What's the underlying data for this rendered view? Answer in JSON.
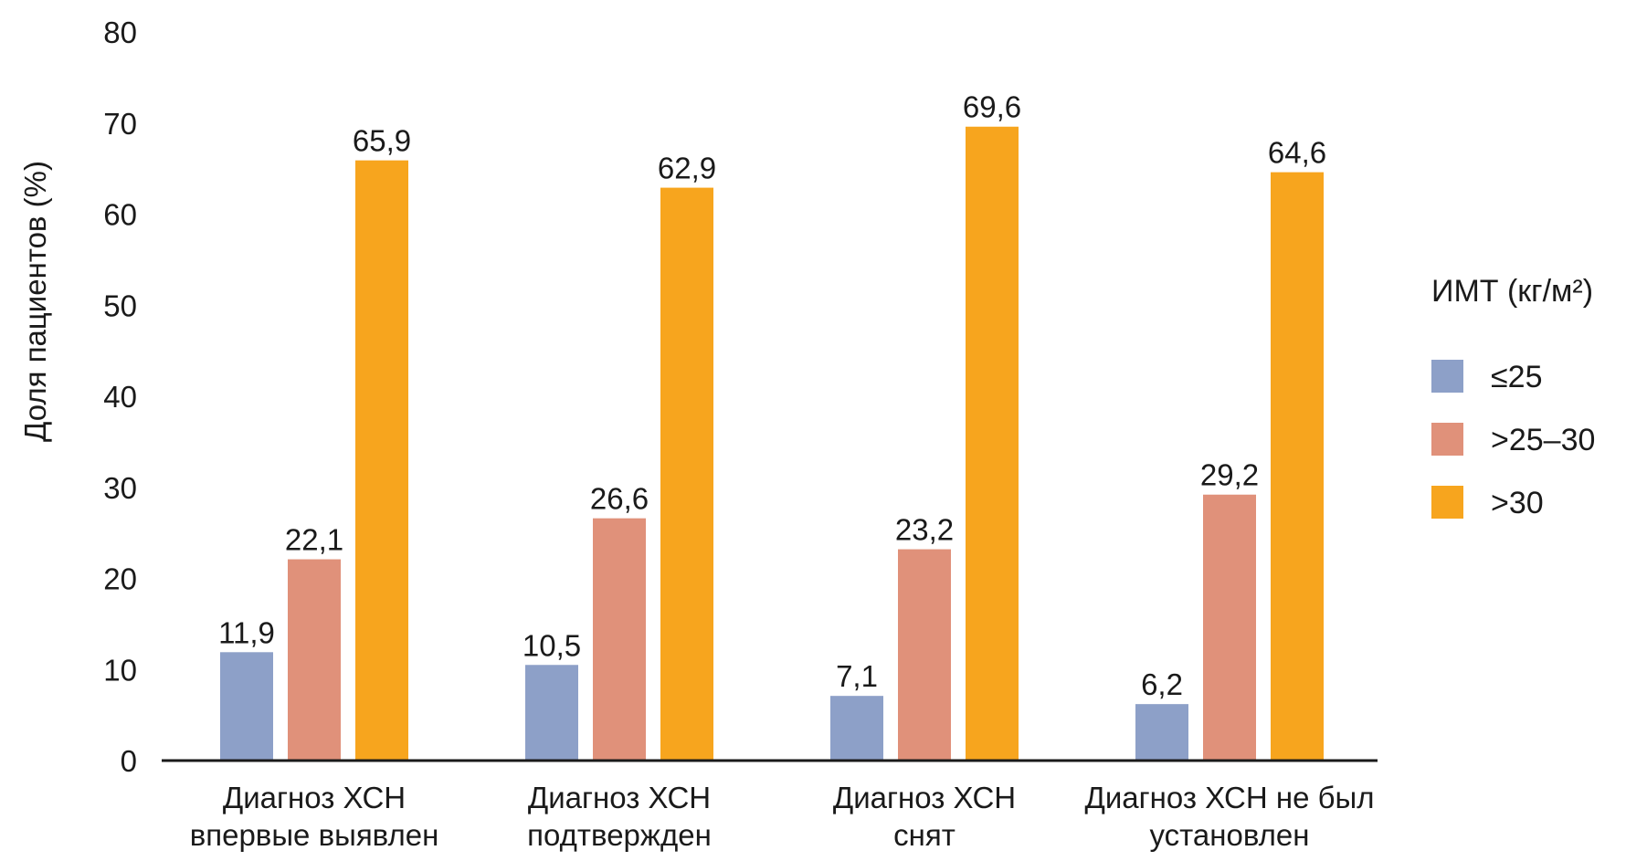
{
  "chart_data": {
    "type": "bar",
    "title": "",
    "xlabel": "",
    "ylabel": "Доля пациентов (%)",
    "ylim": [
      0,
      80
    ],
    "yticks": [
      0,
      10,
      20,
      30,
      40,
      50,
      60,
      70,
      80
    ],
    "grid": false,
    "categories": [
      [
        "Диагноз ХСН",
        "впервые выявлен"
      ],
      [
        "Диагноз ХСН",
        "подтвержден"
      ],
      [
        "Диагноз ХСН",
        "снят"
      ],
      [
        "Диагноз ХСН не был",
        "установлен"
      ]
    ],
    "legend": {
      "title": "ИМТ (кг/м²)",
      "placement": "right"
    },
    "series": [
      {
        "name": "≤25",
        "color": "#8da0c8",
        "values": [
          11.9,
          10.5,
          7.1,
          6.2
        ],
        "labels": [
          "11,9",
          "10,5",
          "7,1",
          "6,2"
        ]
      },
      {
        "name": ">25–30",
        "color": "#e0917a",
        "values": [
          22.1,
          26.6,
          23.2,
          29.2
        ],
        "labels": [
          "22,1",
          "26,6",
          "23,2",
          "29,2"
        ]
      },
      {
        "name": ">30",
        "color": "#f7a51e",
        "values": [
          65.9,
          62.9,
          69.6,
          64.6
        ],
        "labels": [
          "65,9",
          "62,9",
          "69,6",
          "64,6"
        ]
      }
    ]
  }
}
